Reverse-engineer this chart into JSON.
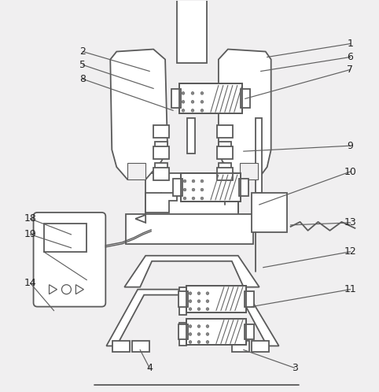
{
  "bg_color": "#f0eff0",
  "line_color": "#5a5a5a",
  "lw": 1.3,
  "fig_width": 4.82,
  "fig_height": 4.98,
  "dpi": 100
}
